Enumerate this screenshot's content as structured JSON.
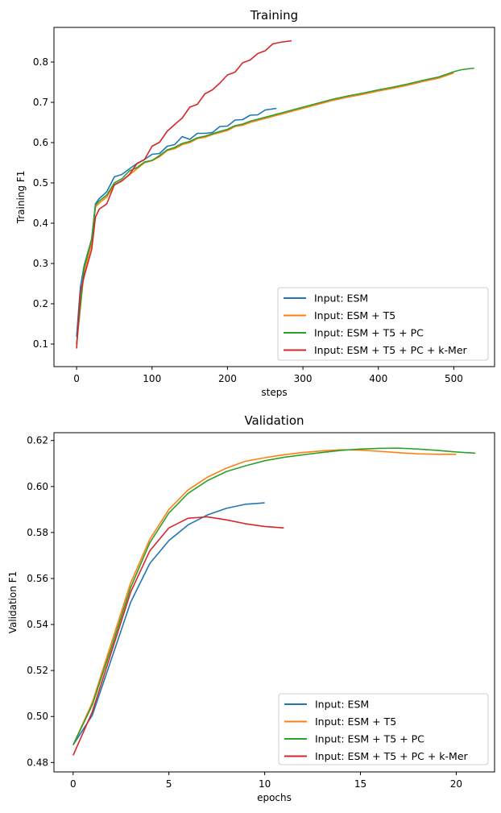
{
  "chart_data": [
    {
      "type": "line",
      "title": "Training",
      "xlabel": "steps",
      "ylabel": "Training F1",
      "xlim": [
        -30,
        554
      ],
      "ylim": [
        0.044,
        0.886
      ],
      "xticks": [
        0,
        100,
        200,
        300,
        400,
        500
      ],
      "yticks": [
        0.1,
        0.2,
        0.3,
        0.4,
        0.5,
        0.6,
        0.7,
        0.8
      ],
      "legend": "lower right",
      "grid": false,
      "series": [
        {
          "name": "Input: ESM",
          "color": "#1f77b4",
          "x": [
            0,
            5,
            10,
            20,
            25,
            30,
            40,
            50,
            60,
            70,
            80,
            90,
            100,
            110,
            120,
            130,
            140,
            150,
            160,
            170,
            180,
            190,
            200,
            210,
            220,
            230,
            240,
            250,
            265
          ],
          "y": [
            0.118,
            0.241,
            0.295,
            0.361,
            0.448,
            0.461,
            0.478,
            0.515,
            0.521,
            0.535,
            0.548,
            0.558,
            0.571,
            0.573,
            0.591,
            0.595,
            0.615,
            0.608,
            0.623,
            0.623,
            0.625,
            0.64,
            0.641,
            0.656,
            0.657,
            0.668,
            0.669,
            0.681,
            0.685
          ]
        },
        {
          "name": "Input: ESM + T5",
          "color": "#ff7f0e",
          "x": [
            0,
            10,
            20,
            25,
            30,
            40,
            50,
            60,
            70,
            80,
            90,
            100,
            110,
            120,
            130,
            140,
            150,
            160,
            170,
            180,
            190,
            200,
            210,
            220,
            230,
            240,
            250,
            260,
            270,
            280,
            300,
            320,
            340,
            360,
            380,
            400,
            420,
            440,
            460,
            480,
            500
          ],
          "y": [
            0.1,
            0.28,
            0.35,
            0.44,
            0.45,
            0.465,
            0.495,
            0.505,
            0.52,
            0.535,
            0.55,
            0.555,
            0.565,
            0.58,
            0.585,
            0.595,
            0.6,
            0.61,
            0.613,
            0.62,
            0.625,
            0.63,
            0.64,
            0.643,
            0.65,
            0.655,
            0.66,
            0.665,
            0.67,
            0.675,
            0.685,
            0.695,
            0.705,
            0.713,
            0.72,
            0.728,
            0.735,
            0.743,
            0.752,
            0.76,
            0.773
          ]
        },
        {
          "name": "Input: ESM + T5 + PC",
          "color": "#2ca02c",
          "x": [
            0,
            10,
            20,
            25,
            30,
            40,
            50,
            60,
            70,
            80,
            90,
            100,
            110,
            120,
            130,
            140,
            150,
            160,
            170,
            180,
            190,
            200,
            210,
            220,
            230,
            240,
            250,
            260,
            270,
            280,
            300,
            320,
            340,
            360,
            380,
            400,
            420,
            440,
            460,
            480,
            500,
            510,
            527
          ],
          "y": [
            0.1,
            0.29,
            0.36,
            0.445,
            0.455,
            0.47,
            0.5,
            0.51,
            0.53,
            0.538,
            0.552,
            0.556,
            0.568,
            0.582,
            0.588,
            0.598,
            0.603,
            0.612,
            0.616,
            0.622,
            0.628,
            0.633,
            0.642,
            0.646,
            0.653,
            0.658,
            0.663,
            0.668,
            0.673,
            0.678,
            0.688,
            0.698,
            0.708,
            0.716,
            0.723,
            0.731,
            0.738,
            0.746,
            0.755,
            0.763,
            0.776,
            0.781,
            0.785
          ]
        },
        {
          "name": "Input: ESM + T5 + PC + k-Mer",
          "color": "#d62728",
          "x": [
            0,
            5,
            10,
            20,
            25,
            30,
            40,
            50,
            60,
            70,
            80,
            90,
            100,
            110,
            120,
            130,
            140,
            150,
            160,
            170,
            180,
            190,
            200,
            210,
            220,
            230,
            240,
            250,
            260,
            270,
            285
          ],
          "y": [
            0.089,
            0.228,
            0.268,
            0.335,
            0.415,
            0.435,
            0.448,
            0.495,
            0.505,
            0.521,
            0.548,
            0.558,
            0.591,
            0.601,
            0.628,
            0.645,
            0.661,
            0.688,
            0.695,
            0.721,
            0.731,
            0.748,
            0.768,
            0.775,
            0.798,
            0.805,
            0.821,
            0.828,
            0.845,
            0.849,
            0.853
          ]
        }
      ]
    },
    {
      "type": "line",
      "title": "Validation",
      "xlabel": "epochs",
      "ylabel": "Validation F1",
      "xlim": [
        -1,
        22
      ],
      "ylim": [
        0.4759,
        0.6234
      ],
      "xticks": [
        0,
        5,
        10,
        15,
        20
      ],
      "yticks": [
        0.48,
        0.5,
        0.52,
        0.54,
        0.56,
        0.58,
        0.6,
        0.62
      ],
      "legend": "lower right",
      "grid": false,
      "series": [
        {
          "name": "Input: ESM",
          "color": "#1f77b4",
          "x": [
            0,
            1,
            2,
            3,
            4,
            5,
            6,
            7,
            8,
            9,
            10
          ],
          "y": [
            0.4876,
            0.5005,
            0.525,
            0.5496,
            0.5665,
            0.5765,
            0.5833,
            0.5876,
            0.5905,
            0.5923,
            0.5929
          ]
        },
        {
          "name": "Input: ESM + T5",
          "color": "#ff7f0e",
          "x": [
            0,
            1,
            2,
            3,
            4,
            5,
            6,
            7,
            8,
            9,
            10,
            11,
            12,
            13,
            14,
            15,
            16,
            17,
            18,
            19,
            20
          ],
          "y": [
            0.4876,
            0.506,
            0.532,
            0.558,
            0.577,
            0.59,
            0.5985,
            0.604,
            0.608,
            0.611,
            0.6125,
            0.6138,
            0.6148,
            0.6155,
            0.616,
            0.6158,
            0.6153,
            0.6147,
            0.6142,
            0.614,
            0.614
          ]
        },
        {
          "name": "Input: ESM + T5 + PC",
          "color": "#2ca02c",
          "x": [
            0,
            1,
            2,
            3,
            4,
            5,
            6,
            7,
            8,
            9,
            10,
            11,
            12,
            13,
            14,
            15,
            16,
            17,
            18,
            19,
            20,
            21
          ],
          "y": [
            0.4876,
            0.505,
            0.53,
            0.556,
            0.5755,
            0.5885,
            0.597,
            0.6025,
            0.6065,
            0.609,
            0.6112,
            0.6127,
            0.6138,
            0.6148,
            0.6157,
            0.6163,
            0.6166,
            0.6167,
            0.6163,
            0.6157,
            0.615,
            0.6145
          ]
        },
        {
          "name": "Input: ESM + T5 + PC + k-Mer",
          "color": "#d62728",
          "x": [
            0,
            1,
            2,
            3,
            4,
            5,
            6,
            7,
            8,
            9,
            10,
            11
          ],
          "y": [
            0.4831,
            0.502,
            0.528,
            0.554,
            0.572,
            0.582,
            0.5862,
            0.5868,
            0.5855,
            0.5838,
            0.5826,
            0.582
          ]
        }
      ]
    }
  ]
}
